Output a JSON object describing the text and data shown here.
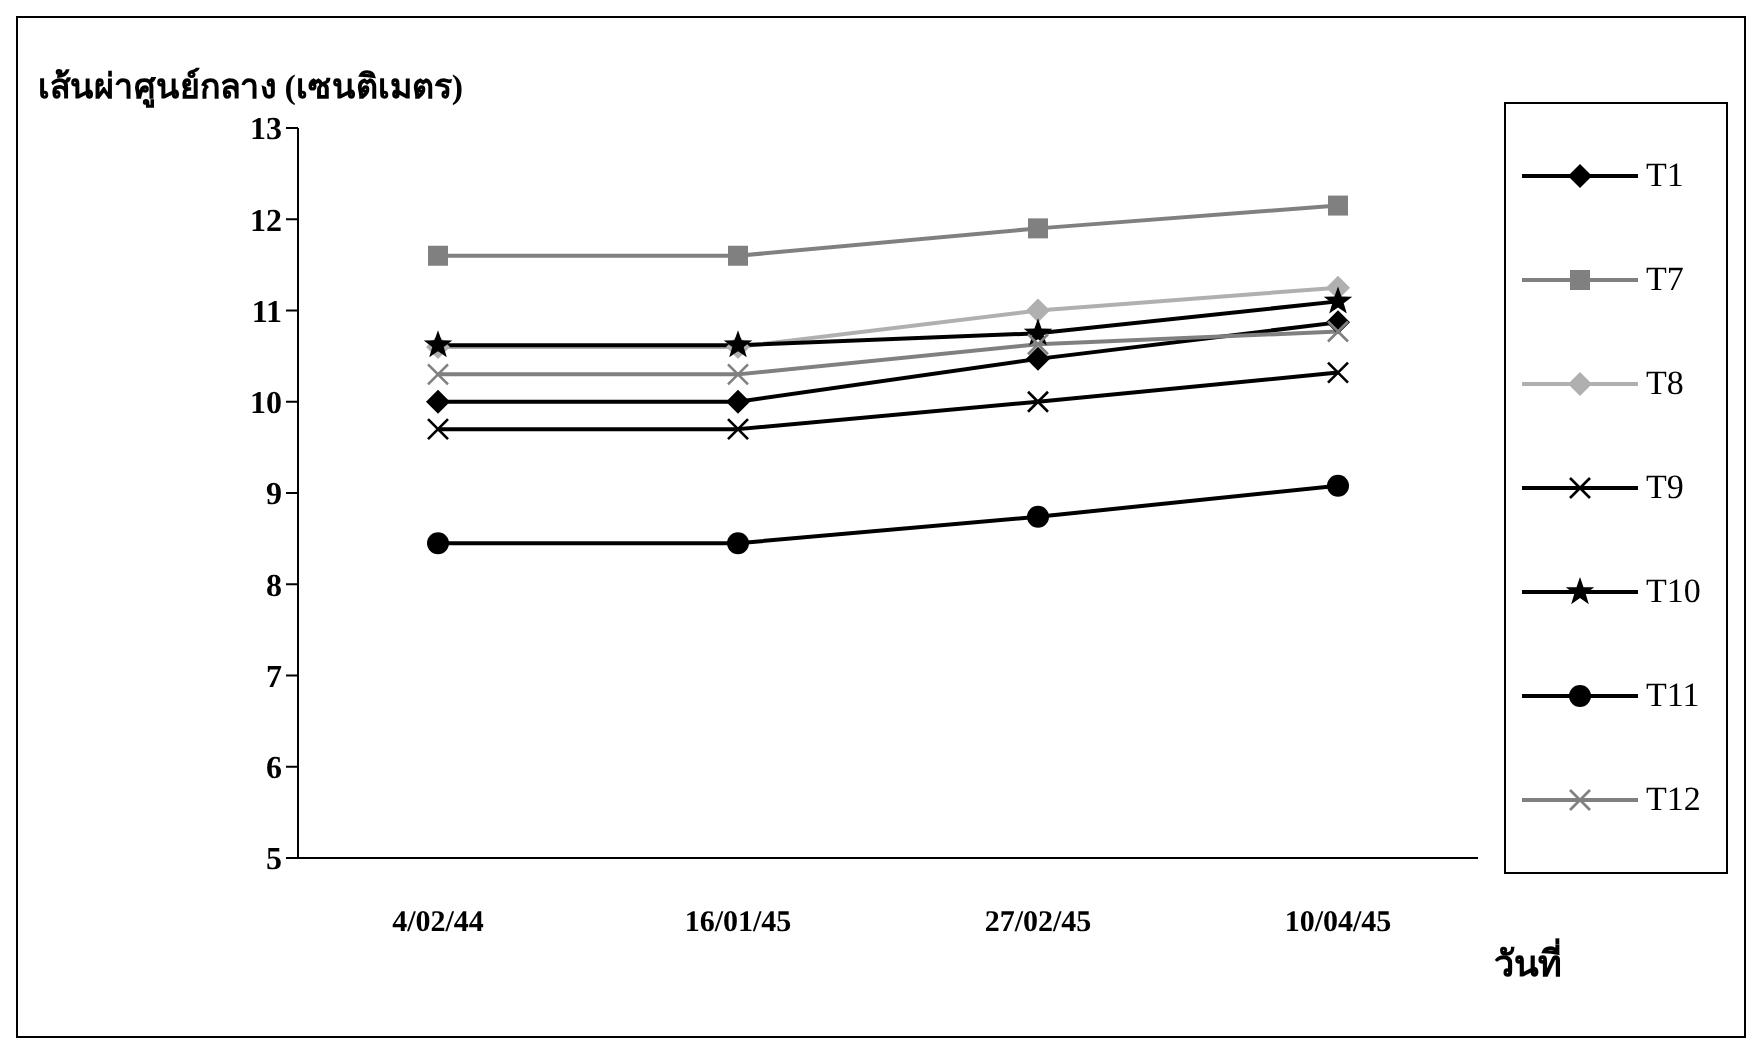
{
  "chart_data": {
    "type": "line",
    "ylabel": "เส้นผ่าศูนย์กลาง (เซนติเมตร)",
    "xlabel": "วันที่",
    "categories": [
      "4/02/44",
      "16/01/45",
      "27/02/45",
      "10/04/45"
    ],
    "ylim": [
      5,
      13
    ],
    "yticks": [
      5,
      6,
      7,
      8,
      9,
      10,
      11,
      12,
      13
    ],
    "grid": false,
    "legend": "right",
    "series": [
      {
        "name": "T1",
        "color": "#000000",
        "marker": "diamond",
        "values": [
          10.0,
          10.0,
          10.47,
          10.87
        ]
      },
      {
        "name": "T7",
        "color": "#808080",
        "marker": "square",
        "values": [
          11.6,
          11.6,
          11.9,
          12.15
        ]
      },
      {
        "name": "T8",
        "color": "#b0b0b0",
        "marker": "diamond",
        "values": [
          10.6,
          10.6,
          11.0,
          11.25
        ]
      },
      {
        "name": "T9",
        "color": "#000000",
        "marker": "cross",
        "values": [
          9.7,
          9.7,
          10.0,
          10.32
        ]
      },
      {
        "name": "T10",
        "color": "#000000",
        "marker": "star",
        "values": [
          10.62,
          10.62,
          10.75,
          11.1
        ]
      },
      {
        "name": "T11",
        "color": "#000000",
        "marker": "circle",
        "values": [
          8.45,
          8.45,
          8.74,
          9.08
        ]
      },
      {
        "name": "T12",
        "color": "#808080",
        "marker": "cross",
        "values": [
          10.3,
          10.3,
          10.63,
          10.77
        ]
      }
    ]
  }
}
